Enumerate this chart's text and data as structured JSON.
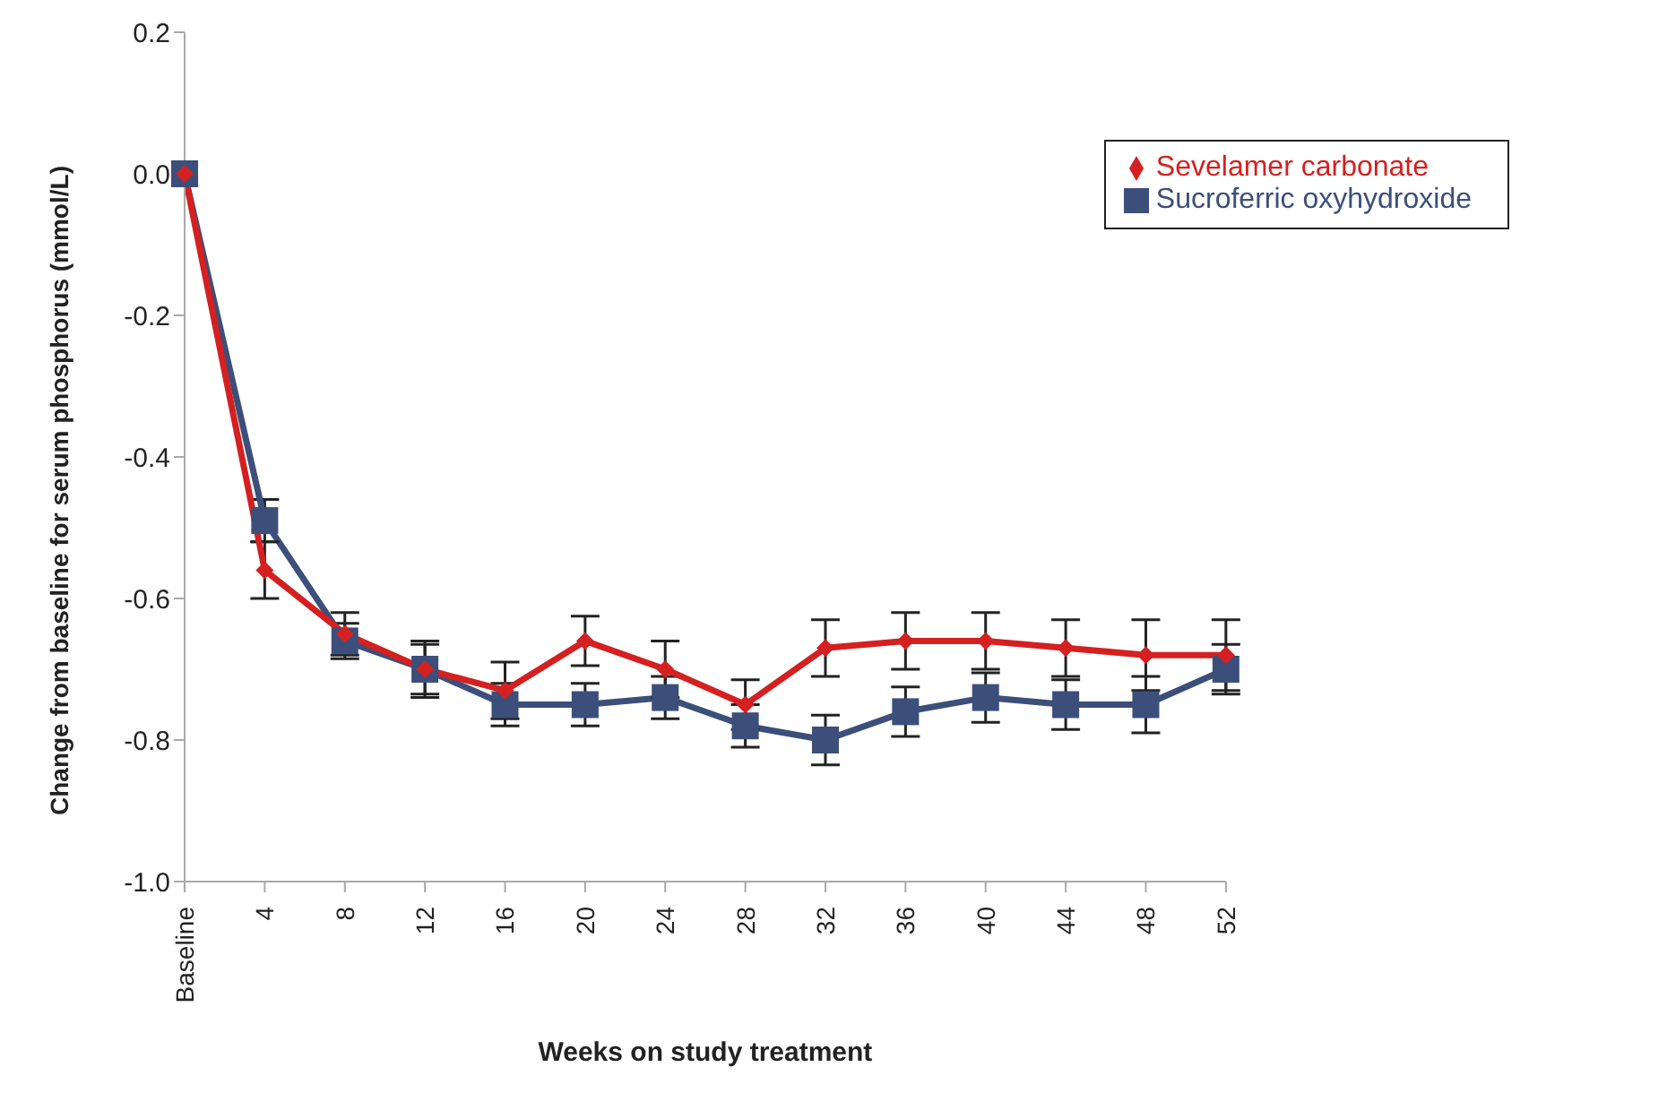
{
  "chart_data": {
    "type": "line",
    "xlabel": "Weeks on study treatment",
    "ylabel": "Change from baseline for serum phosphorus (mmol/L)",
    "categories": [
      "Baseline",
      "4",
      "8",
      "12",
      "16",
      "20",
      "24",
      "28",
      "32",
      "36",
      "40",
      "44",
      "48",
      "52"
    ],
    "ylim": [
      -1.0,
      0.2
    ],
    "yticks": [
      {
        "value": -1.0,
        "label": "-1.0"
      },
      {
        "value": -0.8,
        "label": "-0.8"
      },
      {
        "value": -0.6,
        "label": "-0.6"
      },
      {
        "value": -0.4,
        "label": "-0.4"
      },
      {
        "value": -0.2,
        "label": "-0.2"
      },
      {
        "value": 0,
        "label": "0.0"
      },
      {
        "value": 0.2,
        "label": "0.2"
      }
    ],
    "grid": false,
    "legend": "top right",
    "series": [
      {
        "name": "Sucroferric oxyhydroxide",
        "color": "#3b4f7a",
        "marker": "square",
        "values": [
          0,
          -0.49,
          -0.66,
          -0.7,
          -0.75,
          -0.75,
          -0.74,
          -0.78,
          -0.8,
          -0.76,
          -0.74,
          -0.75,
          -0.75,
          -0.7
        ],
        "errors": [
          null,
          0.03,
          0.025,
          0.035,
          0.03,
          0.03,
          0.03,
          0.03,
          0.035,
          0.035,
          0.035,
          0.035,
          0.04,
          0.035
        ]
      },
      {
        "name": "Sevelamer carbonate",
        "color": "#d42020",
        "marker": "diamond",
        "values": [
          0,
          -0.56,
          -0.65,
          -0.7,
          -0.73,
          -0.66,
          -0.7,
          -0.75,
          -0.67,
          -0.66,
          -0.66,
          -0.67,
          -0.68,
          -0.68
        ],
        "errors": [
          null,
          0.04,
          0.03,
          0.04,
          0.04,
          0.035,
          0.04,
          0.035,
          0.04,
          0.04,
          0.04,
          0.04,
          0.05,
          0.05
        ]
      }
    ]
  }
}
